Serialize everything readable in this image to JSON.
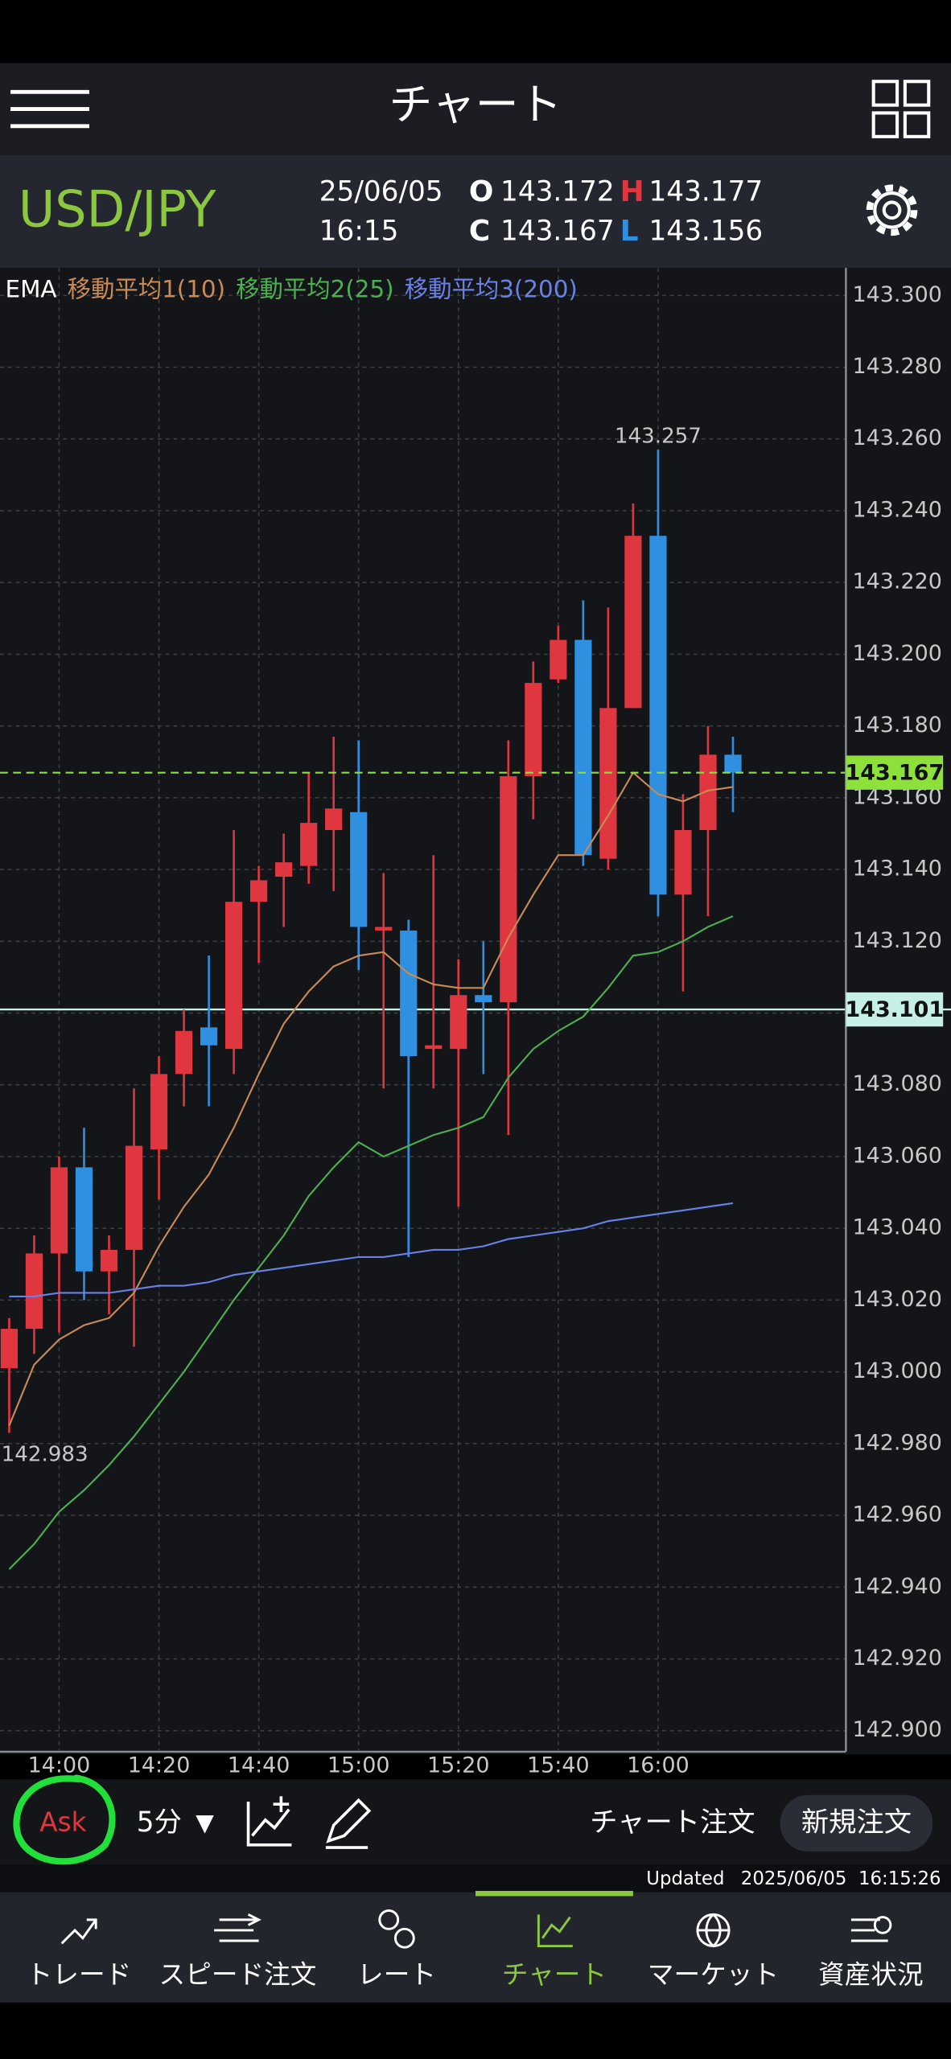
{
  "header": {
    "title": "チャート"
  },
  "quote": {
    "symbol": "USD/JPY",
    "date": "25/06/05",
    "time": "16:15",
    "open_label": "O",
    "open": "143.172",
    "high_label": "H",
    "high": "143.177",
    "close_label": "C",
    "close": "143.167",
    "low_label": "L",
    "low": "143.156"
  },
  "chart_data": {
    "type": "candlestick",
    "legend_title": "EMA",
    "categories": [
      null,
      null,
      "14:00",
      null,
      null,
      null,
      "14:20",
      null,
      null,
      null,
      "14:40",
      null,
      null,
      null,
      "15:00",
      null,
      null,
      null,
      "15:20",
      null,
      null,
      null,
      "15:40",
      null,
      null,
      null,
      "16:00",
      null,
      null,
      null
    ],
    "open": [
      143.001,
      143.012,
      143.033,
      143.057,
      143.028,
      143.034,
      143.062,
      143.083,
      143.096,
      143.09,
      143.131,
      143.138,
      143.141,
      143.151,
      143.156,
      143.123,
      143.123,
      143.09,
      143.09,
      143.105,
      143.103,
      143.166,
      143.193,
      143.204,
      143.143,
      143.185,
      143.233,
      143.133,
      143.151,
      143.172
    ],
    "high": [
      143.015,
      143.038,
      143.06,
      143.068,
      143.038,
      143.079,
      143.088,
      143.101,
      143.116,
      143.151,
      143.141,
      143.15,
      143.167,
      143.177,
      143.176,
      143.139,
      143.126,
      143.144,
      143.115,
      143.12,
      143.176,
      143.198,
      143.208,
      143.215,
      143.213,
      143.242,
      143.257,
      143.161,
      143.18,
      143.177
    ],
    "low": [
      142.983,
      143.005,
      143.011,
      143.02,
      143.016,
      143.007,
      143.048,
      143.074,
      143.074,
      143.083,
      143.114,
      143.124,
      143.136,
      143.134,
      143.112,
      143.079,
      143.032,
      143.079,
      143.046,
      143.083,
      143.066,
      143.154,
      143.192,
      143.141,
      143.14,
      143.185,
      143.127,
      143.106,
      143.127,
      143.156
    ],
    "close": [
      143.012,
      143.033,
      143.057,
      143.028,
      143.034,
      143.063,
      143.083,
      143.095,
      143.091,
      143.131,
      143.137,
      143.142,
      143.153,
      143.157,
      143.124,
      143.124,
      143.088,
      143.091,
      143.105,
      143.103,
      143.166,
      143.192,
      143.204,
      143.144,
      143.185,
      143.233,
      143.133,
      143.151,
      143.172,
      143.167
    ],
    "up_color": "#e0363f",
    "down_color": "#2f8fe0",
    "series": [
      {
        "name": "移動平均1(10)",
        "color": "#c98a55",
        "values": [
          142.985,
          143.002,
          143.009,
          143.013,
          143.015,
          143.022,
          143.035,
          143.046,
          143.055,
          143.068,
          143.083,
          143.097,
          143.106,
          143.113,
          143.116,
          143.117,
          143.111,
          143.108,
          143.107,
          143.107,
          143.121,
          143.133,
          143.144,
          143.144,
          143.155,
          143.167,
          143.161,
          143.159,
          143.162,
          143.163
        ]
      },
      {
        "name": "移動平均2(25)",
        "color": "#4caf50",
        "values": [
          142.945,
          142.952,
          142.961,
          142.967,
          142.974,
          142.982,
          142.991,
          143.0,
          143.01,
          143.02,
          143.029,
          143.038,
          143.049,
          143.057,
          143.064,
          143.06,
          143.063,
          143.066,
          143.068,
          143.071,
          143.082,
          143.09,
          143.095,
          143.099,
          143.107,
          143.116,
          143.117,
          143.12,
          143.124,
          143.127
        ]
      },
      {
        "name": "移動平均3(200)",
        "color": "#6a80e6",
        "values": [
          143.021,
          143.021,
          143.022,
          143.022,
          143.022,
          143.023,
          143.024,
          143.024,
          143.025,
          143.027,
          143.028,
          143.029,
          143.03,
          143.031,
          143.032,
          143.032,
          143.033,
          143.034,
          143.034,
          143.035,
          143.037,
          143.038,
          143.039,
          143.04,
          143.042,
          143.043,
          143.044,
          143.045,
          143.046,
          143.047
        ]
      }
    ],
    "high_marker": 143.257,
    "low_marker": 142.983,
    "price_line": 143.167,
    "price_line_color": "#8ee03a",
    "horizontal_line": 143.101,
    "horizontal_line_color": "#c6f0e6",
    "ylim": [
      142.8945,
      143.3073
    ],
    "yticks": [
      {
        "value": 142.9,
        "label": "142.900"
      },
      {
        "value": 142.92,
        "label": "142.920"
      },
      {
        "value": 142.94,
        "label": "142.940"
      },
      {
        "value": 142.96,
        "label": "142.960"
      },
      {
        "value": 142.98,
        "label": "142.980"
      },
      {
        "value": 143.0,
        "label": "143.000"
      },
      {
        "value": 143.02,
        "label": "143.020"
      },
      {
        "value": 143.04,
        "label": "143.040"
      },
      {
        "value": 143.06,
        "label": "143.060"
      },
      {
        "value": 143.08,
        "label": "143.080"
      },
      {
        "value": 143.1,
        "label": "143.100"
      },
      {
        "value": 143.12,
        "label": "143.120"
      },
      {
        "value": 143.14,
        "label": "143.140"
      },
      {
        "value": 143.16,
        "label": "143.160"
      },
      {
        "value": 143.18,
        "label": "143.180"
      },
      {
        "value": 143.2,
        "label": "143.200"
      },
      {
        "value": 143.22,
        "label": "143.220"
      },
      {
        "value": 143.24,
        "label": "143.240"
      },
      {
        "value": 143.26,
        "label": "143.260"
      },
      {
        "value": 143.28,
        "label": "143.280"
      },
      {
        "value": 143.3,
        "label": "143.300"
      }
    ],
    "grid": true
  },
  "toolbar": {
    "price_side": "Ask",
    "interval": "5分",
    "dropdown": "▼",
    "chart_order": "チャート注文",
    "new_order": "新規注文"
  },
  "status": {
    "updated_label": "Updated",
    "timestamp": "2025/06/05  16:15:26"
  },
  "nav": {
    "items": [
      "トレード",
      "スピード注文",
      "レート",
      "チャート",
      "マーケット",
      "資産状況"
    ],
    "active": 3
  }
}
